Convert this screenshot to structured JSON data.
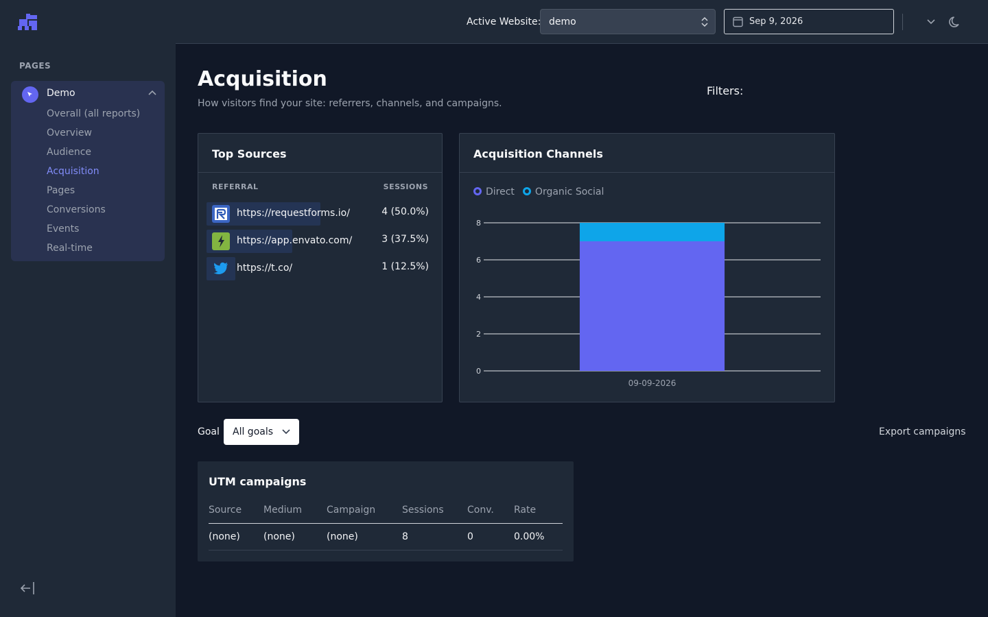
{
  "sidebar": {
    "section_label": "PAGES",
    "group": {
      "label": "Demo",
      "items": [
        {
          "label": "Overall (all reports)",
          "active": false
        },
        {
          "label": "Overview",
          "active": false
        },
        {
          "label": "Audience",
          "active": false
        },
        {
          "label": "Acquisition",
          "active": true
        },
        {
          "label": "Pages",
          "active": false
        },
        {
          "label": "Conversions",
          "active": false
        },
        {
          "label": "Events",
          "active": false
        },
        {
          "label": "Real-time",
          "active": false
        }
      ]
    }
  },
  "topbar": {
    "active_website_label": "Active Website:",
    "website_value": "demo",
    "date_value": "Sep 9, 2026"
  },
  "page": {
    "title": "Acquisition",
    "subtitle": "How visitors find your site: referrers, channels, and campaigns.",
    "filters_label": "Filters:"
  },
  "top_sources": {
    "title": "Top Sources",
    "col_referral": "REFERRAL",
    "col_sessions": "SESSIONS",
    "rows": [
      {
        "url": "https://requestforms.io/",
        "value": "4 (50.0%)",
        "share": 0.5,
        "icon": "requestforms-logo-icon"
      },
      {
        "url": "https://app.envato.com/",
        "value": "3 (37.5%)",
        "share": 0.375,
        "icon": "envato-logo-icon"
      },
      {
        "url": "https://t.co/",
        "value": "1 (12.5%)",
        "share": 0.125,
        "icon": "twitter-logo-icon"
      }
    ]
  },
  "channels": {
    "title": "Acquisition Channels"
  },
  "chart_data": {
    "type": "bar",
    "stacked": true,
    "categories": [
      "09-09-2026"
    ],
    "series": [
      {
        "name": "Direct",
        "values": [
          7
        ],
        "color": "#6366f1"
      },
      {
        "name": "Organic Social",
        "values": [
          1
        ],
        "color": "#0ea5e9"
      }
    ],
    "yticks": [
      "0",
      "2",
      "4",
      "6",
      "8"
    ],
    "ylim": [
      0,
      8
    ],
    "grid": true,
    "legend": "top-left"
  },
  "goal": {
    "label": "Goal",
    "selected": "All goals"
  },
  "export_label": "Export campaigns",
  "utm": {
    "title": "UTM campaigns",
    "headers": [
      "Source",
      "Medium",
      "Campaign",
      "Sessions",
      "Conv.",
      "Rate"
    ],
    "rows": [
      [
        "(none)",
        "(none)",
        "(none)",
        "8",
        "0",
        "0.00%"
      ]
    ]
  }
}
